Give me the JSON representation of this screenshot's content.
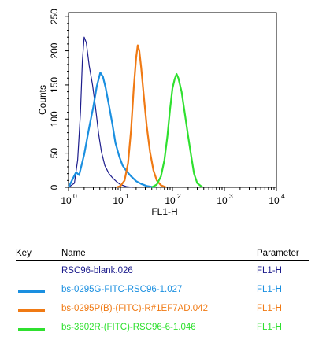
{
  "chart_data": {
    "type": "line",
    "xlabel": "FL1-H",
    "ylabel": "Counts",
    "x_scale": "log",
    "xlim": [
      1,
      10000
    ],
    "ylim": [
      0,
      256
    ],
    "x_tick_labels": [
      {
        "value": 1,
        "label": "10",
        "exp": "0"
      },
      {
        "value": 10,
        "label": "10",
        "exp": "1"
      },
      {
        "value": 100,
        "label": "10",
        "exp": "2"
      },
      {
        "value": 1000,
        "label": "10",
        "exp": "3"
      },
      {
        "value": 10000,
        "label": "10",
        "exp": "4"
      }
    ],
    "y_ticks": [
      0,
      50,
      100,
      150,
      200,
      250
    ],
    "series": [
      {
        "color": "#1c1c8c",
        "line_width": 1.2,
        "points": [
          [
            1,
            0
          ],
          [
            1.3,
            6
          ],
          [
            1.5,
            40
          ],
          [
            1.7,
            110
          ],
          [
            1.85,
            185
          ],
          [
            2.0,
            220
          ],
          [
            2.2,
            212
          ],
          [
            2.5,
            178
          ],
          [
            2.9,
            150
          ],
          [
            3.3,
            118
          ],
          [
            3.8,
            78
          ],
          [
            4.3,
            52
          ],
          [
            5,
            32
          ],
          [
            6,
            20
          ],
          [
            7,
            14
          ],
          [
            8.5,
            8
          ],
          [
            10,
            4
          ],
          [
            13,
            1
          ],
          [
            17,
            0
          ]
        ]
      },
      {
        "color": "#1a8fe0",
        "line_width": 2.2,
        "points": [
          [
            1,
            0
          ],
          [
            1.4,
            22
          ],
          [
            1.6,
            18
          ],
          [
            2,
            48
          ],
          [
            2.5,
            88
          ],
          [
            3,
            118
          ],
          [
            3.5,
            148
          ],
          [
            4.1,
            168
          ],
          [
            4.6,
            162
          ],
          [
            5.2,
            145
          ],
          [
            6,
            120
          ],
          [
            7,
            92
          ],
          [
            8,
            65
          ],
          [
            9.5,
            45
          ],
          [
            11,
            32
          ],
          [
            13,
            24
          ],
          [
            16,
            16
          ],
          [
            20,
            9
          ],
          [
            25,
            5
          ],
          [
            32,
            2
          ],
          [
            45,
            0
          ]
        ]
      },
      {
        "color": "#f07a14",
        "line_width": 2.2,
        "points": [
          [
            8.5,
            0
          ],
          [
            10,
            2
          ],
          [
            12,
            10
          ],
          [
            14,
            35
          ],
          [
            16,
            85
          ],
          [
            18,
            145
          ],
          [
            20,
            190
          ],
          [
            21.5,
            208
          ],
          [
            23,
            200
          ],
          [
            25,
            175
          ],
          [
            28,
            135
          ],
          [
            32,
            90
          ],
          [
            37,
            52
          ],
          [
            43,
            25
          ],
          [
            50,
            10
          ],
          [
            60,
            3
          ],
          [
            75,
            0
          ]
        ]
      },
      {
        "color": "#2fe02f",
        "line_width": 2.2,
        "points": [
          [
            40,
            0
          ],
          [
            50,
            4
          ],
          [
            60,
            16
          ],
          [
            70,
            40
          ],
          [
            80,
            75
          ],
          [
            90,
            115
          ],
          [
            100,
            145
          ],
          [
            110,
            158
          ],
          [
            120,
            166
          ],
          [
            130,
            160
          ],
          [
            150,
            140
          ],
          [
            170,
            112
          ],
          [
            200,
            75
          ],
          [
            230,
            45
          ],
          [
            260,
            20
          ],
          [
            300,
            6
          ],
          [
            380,
            0
          ]
        ]
      }
    ]
  },
  "legend": {
    "headers": {
      "key": "Key",
      "name": "Name",
      "parameter": "Parameter"
    },
    "rows": [
      {
        "name": "RSC96-blank.026",
        "parameter": "FL1-H",
        "color": "#1c1c8c"
      },
      {
        "name": "bs-0295G-FITC-RSC96-1.027",
        "parameter": "FL1-H",
        "color": "#1a8fe0"
      },
      {
        "name": "bs-0295P(B)-(FITC)-R#1EF7AD.042",
        "parameter": "FL1-H",
        "color": "#f07a14"
      },
      {
        "name": "bs-3602R-(FITC)-RSC96-6-1.046",
        "parameter": "FL1-H",
        "color": "#2fe02f"
      }
    ]
  }
}
